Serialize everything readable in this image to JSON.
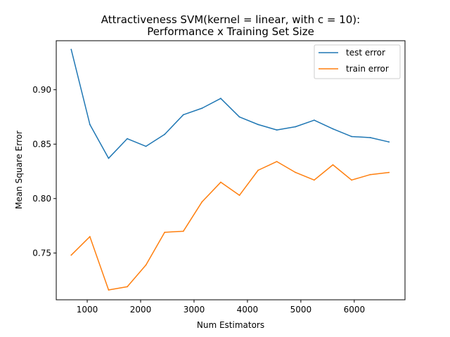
{
  "chart_data": {
    "type": "line",
    "title_lines": [
      "Attractiveness SVM(kernel = linear, with c = 10):",
      "Performance x Training Set Size"
    ],
    "xlabel": "Num Estimators",
    "ylabel": "Mean Square Error",
    "xlim": [
      420,
      6950
    ],
    "ylim": [
      0.707,
      0.945
    ],
    "xticks": [
      1000,
      2000,
      3000,
      4000,
      5000,
      6000
    ],
    "yticks": [
      0.75,
      0.8,
      0.85,
      0.9
    ],
    "ytick_labels": [
      "0.75",
      "0.80",
      "0.85",
      "0.90"
    ],
    "grid": false,
    "legend_position": "upper right",
    "x": [
      700,
      1050,
      1400,
      1750,
      2100,
      2450,
      2800,
      3150,
      3500,
      3850,
      4200,
      4550,
      4900,
      5250,
      5600,
      5950,
      6300,
      6650
    ],
    "series": [
      {
        "name": "test error",
        "color": "#1f77b4",
        "values": [
          0.937,
          0.868,
          0.837,
          0.855,
          0.848,
          0.859,
          0.877,
          0.883,
          0.892,
          0.875,
          0.868,
          0.863,
          0.866,
          0.872,
          0.864,
          0.857,
          0.856,
          0.852
        ]
      },
      {
        "name": "train error",
        "color": "#ff7f0e",
        "values": [
          0.748,
          0.765,
          0.716,
          0.719,
          0.739,
          0.769,
          0.77,
          0.797,
          0.815,
          0.803,
          0.826,
          0.834,
          0.824,
          0.817,
          0.831,
          0.817,
          0.822,
          0.824
        ]
      }
    ]
  }
}
